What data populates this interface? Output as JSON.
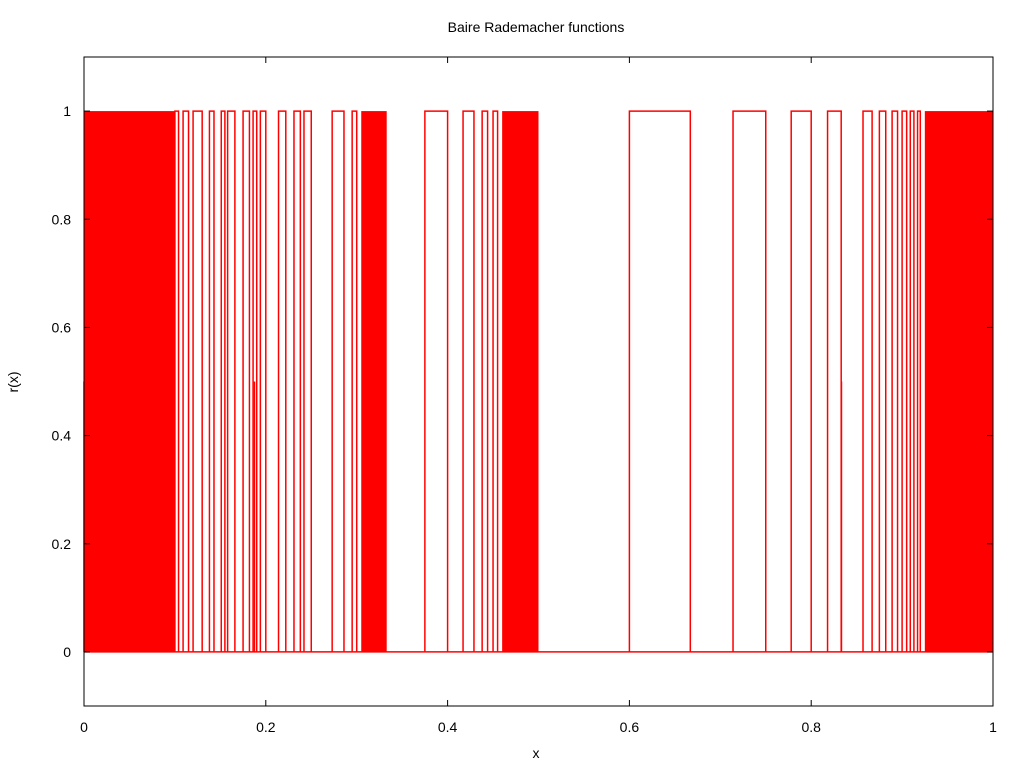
{
  "chart_data": {
    "type": "line",
    "title": "Baire Rademacher functions",
    "xlabel": "x",
    "ylabel": "r(x)",
    "xlim": [
      0,
      1
    ],
    "ylim": [
      -0.1,
      1.1
    ],
    "x_ticks": [
      "0",
      "0.2",
      "0.4",
      "0.6",
      "0.8",
      "1"
    ],
    "y_ticks": [
      "0",
      "0.2",
      "0.4",
      "0.6",
      "0.8",
      "1"
    ],
    "grid": false,
    "legend": "none",
    "series": [
      {
        "color": "#ff0000",
        "style": "step",
        "low_value": 0,
        "high_value": 1,
        "dense_bands": [
          [
            0.0,
            0.1
          ],
          [
            0.305,
            0.333
          ],
          [
            0.46,
            0.5
          ],
          [
            0.925,
            1.0
          ]
        ],
        "high_intervals": [
          [
            0.1,
            0.104
          ],
          [
            0.109,
            0.115
          ],
          [
            0.12,
            0.13
          ],
          [
            0.138,
            0.143
          ],
          [
            0.151,
            0.155
          ],
          [
            0.158,
            0.166
          ],
          [
            0.175,
            0.182
          ],
          [
            0.186,
            0.19
          ],
          [
            0.194,
            0.2
          ],
          [
            0.214,
            0.222
          ],
          [
            0.231,
            0.238
          ],
          [
            0.242,
            0.25
          ],
          [
            0.273,
            0.286
          ],
          [
            0.295,
            0.3
          ],
          [
            0.375,
            0.4
          ],
          [
            0.417,
            0.429
          ],
          [
            0.438,
            0.444
          ],
          [
            0.45,
            0.455
          ],
          [
            0.6,
            0.667
          ],
          [
            0.714,
            0.75
          ],
          [
            0.778,
            0.8
          ],
          [
            0.818,
            0.833
          ],
          [
            0.857,
            0.867
          ],
          [
            0.875,
            0.882
          ],
          [
            0.889,
            0.895
          ],
          [
            0.9,
            0.905
          ],
          [
            0.909,
            0.913
          ],
          [
            0.917,
            0.92
          ]
        ],
        "midpoints": [
          {
            "x": 0.0,
            "y": 0.5
          },
          {
            "x": 0.1875,
            "y": 0.5
          },
          {
            "x": 0.8333,
            "y": 0.5
          }
        ]
      }
    ],
    "colors": {
      "line": "#ff0000",
      "axes": "#000000",
      "background": "#ffffff"
    }
  }
}
